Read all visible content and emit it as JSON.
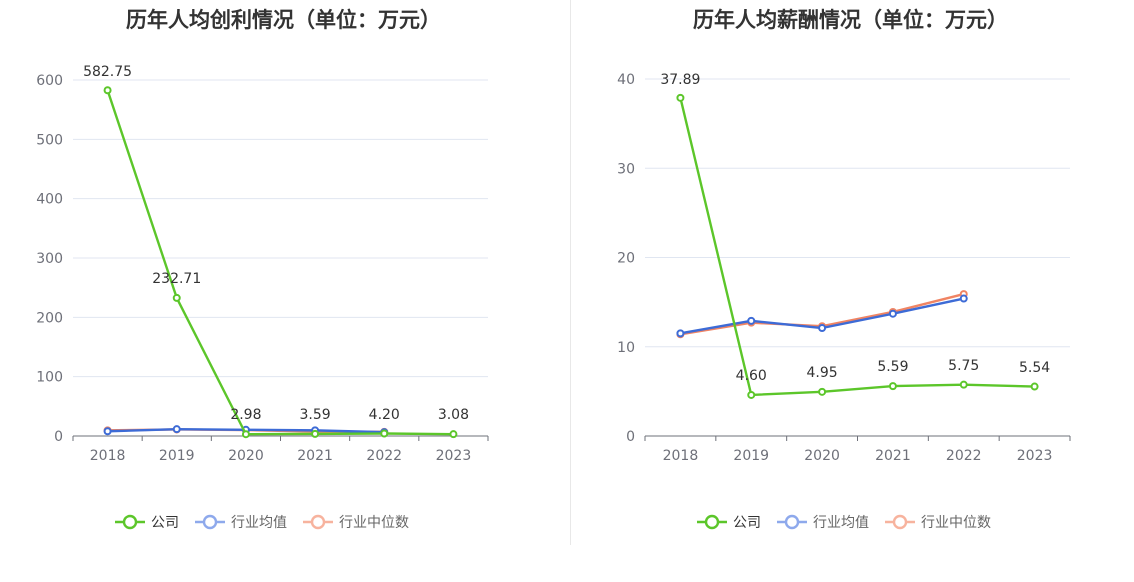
{
  "colors": {
    "company": "#5cc62a",
    "industry_avg": "#3d6bd6",
    "industry_median": "#f08463",
    "legend_avg": "#8ea9ec",
    "legend_median": "#f7b39e",
    "grid": "#e0e6f1",
    "axis": "#6e7079"
  },
  "legend": {
    "company": "公司",
    "industry_avg": "行业均值",
    "industry_median": "行业中位数"
  },
  "chart_data": [
    {
      "type": "line",
      "title": "历年人均创利情况（单位：万元）",
      "categories": [
        "2018",
        "2019",
        "2020",
        "2021",
        "2022",
        "2023"
      ],
      "ylim": [
        0,
        600
      ],
      "yticks": [
        0,
        100,
        200,
        300,
        400,
        500,
        600
      ],
      "grid": true,
      "legend_position": "bottom",
      "series": [
        {
          "name": "公司",
          "values": [
            582.75,
            232.71,
            2.98,
            3.59,
            4.2,
            3.08
          ],
          "labels": [
            "582.75",
            "232.71",
            "2.98",
            "3.59",
            "4.20",
            "3.08"
          ]
        },
        {
          "name": "行业均值",
          "values": [
            8.0,
            11.5,
            10.5,
            9.5,
            6.5,
            null
          ]
        },
        {
          "name": "行业中位数",
          "values": [
            9.5,
            11.0,
            10.0,
            7.5,
            7.0,
            null
          ]
        }
      ]
    },
    {
      "type": "line",
      "title": "历年人均薪酬情况（单位：万元）",
      "categories": [
        "2018",
        "2019",
        "2020",
        "2021",
        "2022",
        "2023"
      ],
      "ylim": [
        0,
        40
      ],
      "yticks": [
        0,
        10,
        20,
        30,
        40
      ],
      "grid": true,
      "legend_position": "bottom",
      "series": [
        {
          "name": "公司",
          "values": [
            37.89,
            4.6,
            4.95,
            5.59,
            5.75,
            5.54
          ],
          "labels": [
            "37.89",
            "4.60",
            "4.95",
            "5.59",
            "5.75",
            "5.54"
          ]
        },
        {
          "name": "行业均值",
          "values": [
            11.5,
            12.9,
            12.1,
            13.7,
            15.4,
            null
          ]
        },
        {
          "name": "行业中位数",
          "values": [
            11.4,
            12.7,
            12.3,
            13.9,
            15.9,
            null
          ]
        }
      ]
    }
  ]
}
